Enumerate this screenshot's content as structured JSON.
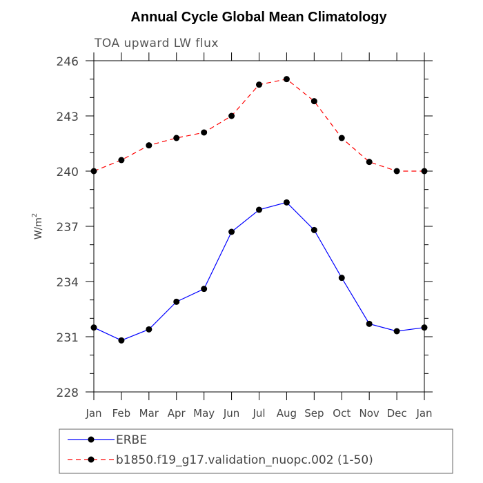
{
  "chart_data": {
    "type": "line",
    "title": "Annual Cycle Global Mean Climatology",
    "subtitle": "TOA upward LW flux",
    "xlabel": "",
    "ylabel": "W/m",
    "ylabel_superscript": "2",
    "ylim": [
      228,
      246
    ],
    "yticks": [
      228,
      231,
      234,
      237,
      240,
      243,
      246
    ],
    "categories": [
      "Jan",
      "Feb",
      "Mar",
      "Apr",
      "May",
      "Jun",
      "Jul",
      "Aug",
      "Sep",
      "Oct",
      "Nov",
      "Dec",
      "Jan"
    ],
    "series": [
      {
        "name": "ERBE",
        "color": "#0000ff",
        "style": "solid",
        "values": [
          231.5,
          230.8,
          231.4,
          232.9,
          233.6,
          236.7,
          237.9,
          238.3,
          236.8,
          234.2,
          231.7,
          231.3,
          231.5
        ]
      },
      {
        "name": "b1850.f19_g17.validation_nuopc.002 (1-50)",
        "color": "#ff0000",
        "style": "dashed",
        "values": [
          240.0,
          240.6,
          241.4,
          241.8,
          242.1,
          243.0,
          244.7,
          245.0,
          243.8,
          241.8,
          240.5,
          240.0,
          240.0
        ]
      }
    ],
    "legend_position": "bottom"
  }
}
